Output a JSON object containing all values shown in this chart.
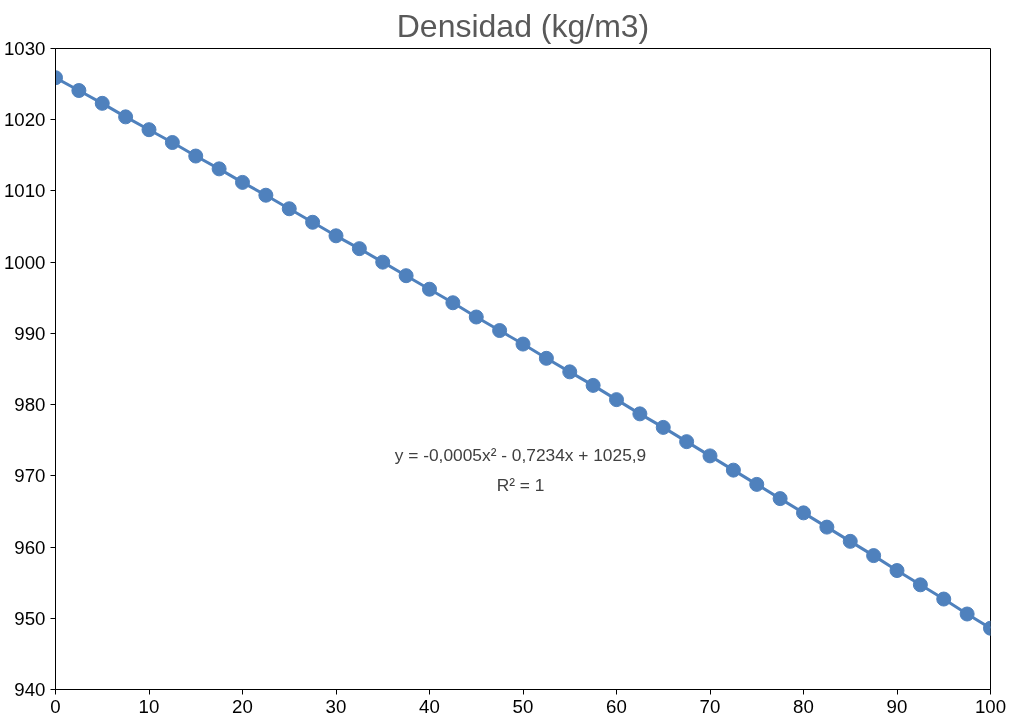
{
  "chart_data": {
    "type": "line",
    "title": "Densidad (kg/m3)",
    "x": [
      0,
      2.5,
      5,
      7.5,
      10,
      12.5,
      15,
      17.5,
      20,
      22.5,
      25,
      27.5,
      30,
      32.5,
      35,
      37.5,
      40,
      42.5,
      45,
      47.5,
      50,
      52.5,
      55,
      57.5,
      60,
      62.5,
      65,
      67.5,
      70,
      72.5,
      75,
      77.5,
      80,
      82.5,
      85,
      87.5,
      90,
      92.5,
      95,
      97.5,
      100
    ],
    "series": [
      {
        "color": "#4f81bd",
        "values": [
          1025.9,
          1024.1,
          1022.3,
          1020.4,
          1018.6,
          1016.8,
          1014.9,
          1013.1,
          1011.2,
          1009.4,
          1007.5,
          1005.6,
          1003.7,
          1001.9,
          1000.0,
          998.1,
          996.2,
          994.3,
          992.3,
          990.4,
          988.5,
          986.5,
          984.6,
          982.7,
          980.7,
          978.7,
          976.8,
          974.8,
          972.8,
          970.8,
          968.8,
          966.8,
          964.8,
          962.8,
          960.8,
          958.8,
          956.7,
          954.7,
          952.7,
          950.6,
          948.6
        ]
      }
    ],
    "xlim": [
      0,
      100
    ],
    "xticks": [
      0,
      10,
      20,
      30,
      40,
      50,
      60,
      70,
      80,
      90,
      100
    ],
    "ylim": [
      940,
      1030
    ],
    "yticks": [
      940,
      950,
      960,
      970,
      980,
      990,
      1000,
      1010,
      1020,
      1030
    ],
    "annotations": [
      "y = -0,0005x² - 0,7234x + 1025,9",
      "R² = 1"
    ],
    "grid": false,
    "marker": "circle",
    "line_style": "solid"
  }
}
